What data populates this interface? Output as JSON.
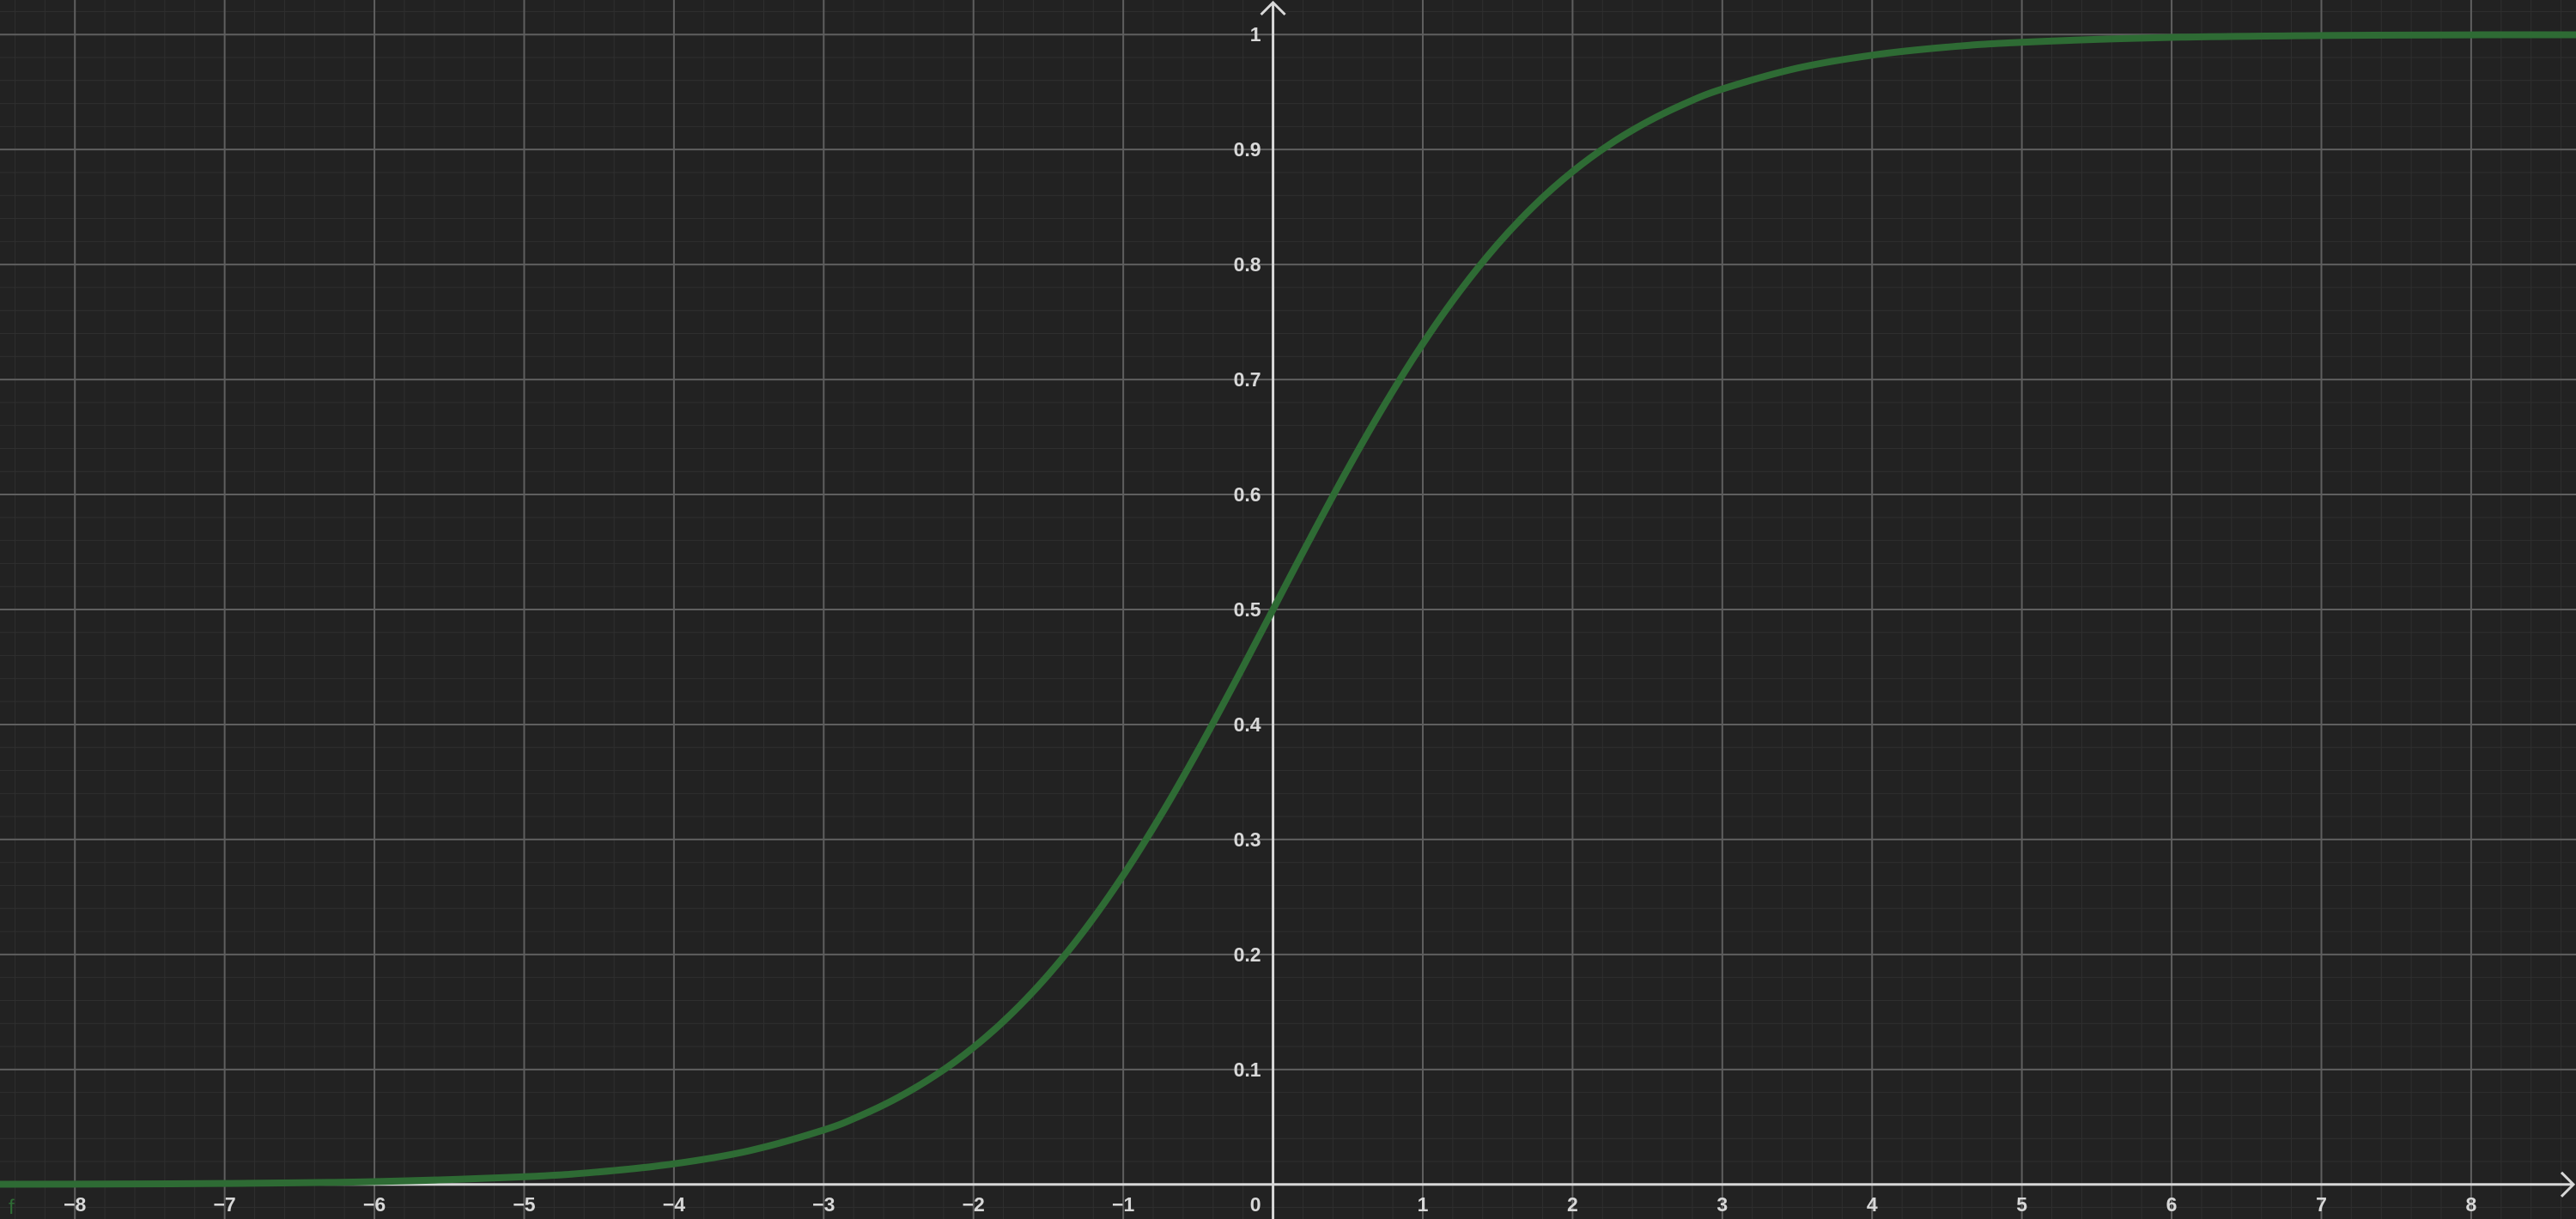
{
  "colors": {
    "background": "#222222",
    "grid_major": "#5f5f5f",
    "grid_minor": "#2f2f2f",
    "axis": "#d8d8d8",
    "curve": "#2e6b34",
    "tick_text": "#d8d8d8"
  },
  "curve_label": "f",
  "chart_data": {
    "type": "line",
    "title": "",
    "xlabel": "",
    "ylabel": "",
    "xlim": [
      -8.5,
      8.7
    ],
    "ylim": [
      -0.03,
      1.03
    ],
    "grid": true,
    "minor_grid": true,
    "x_ticks": [
      -8,
      -7,
      -6,
      -5,
      -4,
      -3,
      -2,
      -1,
      0,
      1,
      2,
      3,
      4,
      5,
      6,
      7,
      8
    ],
    "x_tick_labels": [
      "−8",
      "−7",
      "−6",
      "−5",
      "−4",
      "−3",
      "−2",
      "−1",
      "0",
      "1",
      "2",
      "3",
      "4",
      "5",
      "6",
      "7",
      "8"
    ],
    "y_ticks": [
      0.1,
      0.2,
      0.3,
      0.4,
      0.5,
      0.6,
      0.7,
      0.8,
      0.9,
      1
    ],
    "y_tick_labels": [
      "0.1",
      "0.2",
      "0.3",
      "0.4",
      "0.5",
      "0.6",
      "0.7",
      "0.8",
      "0.9",
      "1"
    ],
    "series": [
      {
        "x": [
          -8.5,
          -8,
          -7,
          -6,
          -5,
          -4.5,
          -4,
          -3.5,
          -3,
          -2.75,
          -2.5,
          -2.25,
          -2,
          -1.75,
          -1.5,
          -1.25,
          -1,
          -0.75,
          -0.5,
          -0.25,
          0,
          0.25,
          0.5,
          0.75,
          1,
          1.25,
          1.5,
          1.75,
          2,
          2.25,
          2.5,
          2.75,
          3,
          3.5,
          4,
          4.5,
          5,
          6,
          7,
          8,
          8.7
        ],
        "y": [
          0.0002,
          0.0003,
          0.0009,
          0.0025,
          0.0067,
          0.011,
          0.018,
          0.0293,
          0.0474,
          0.0601,
          0.0759,
          0.0953,
          0.1192,
          0.148,
          0.1824,
          0.2227,
          0.2689,
          0.3208,
          0.3775,
          0.4378,
          0.5,
          0.5622,
          0.6225,
          0.6792,
          0.7311,
          0.7773,
          0.8176,
          0.852,
          0.8808,
          0.9047,
          0.9241,
          0.9399,
          0.9526,
          0.9707,
          0.982,
          0.989,
          0.9933,
          0.9975,
          0.9991,
          0.9997,
          0.9998
        ]
      }
    ]
  }
}
